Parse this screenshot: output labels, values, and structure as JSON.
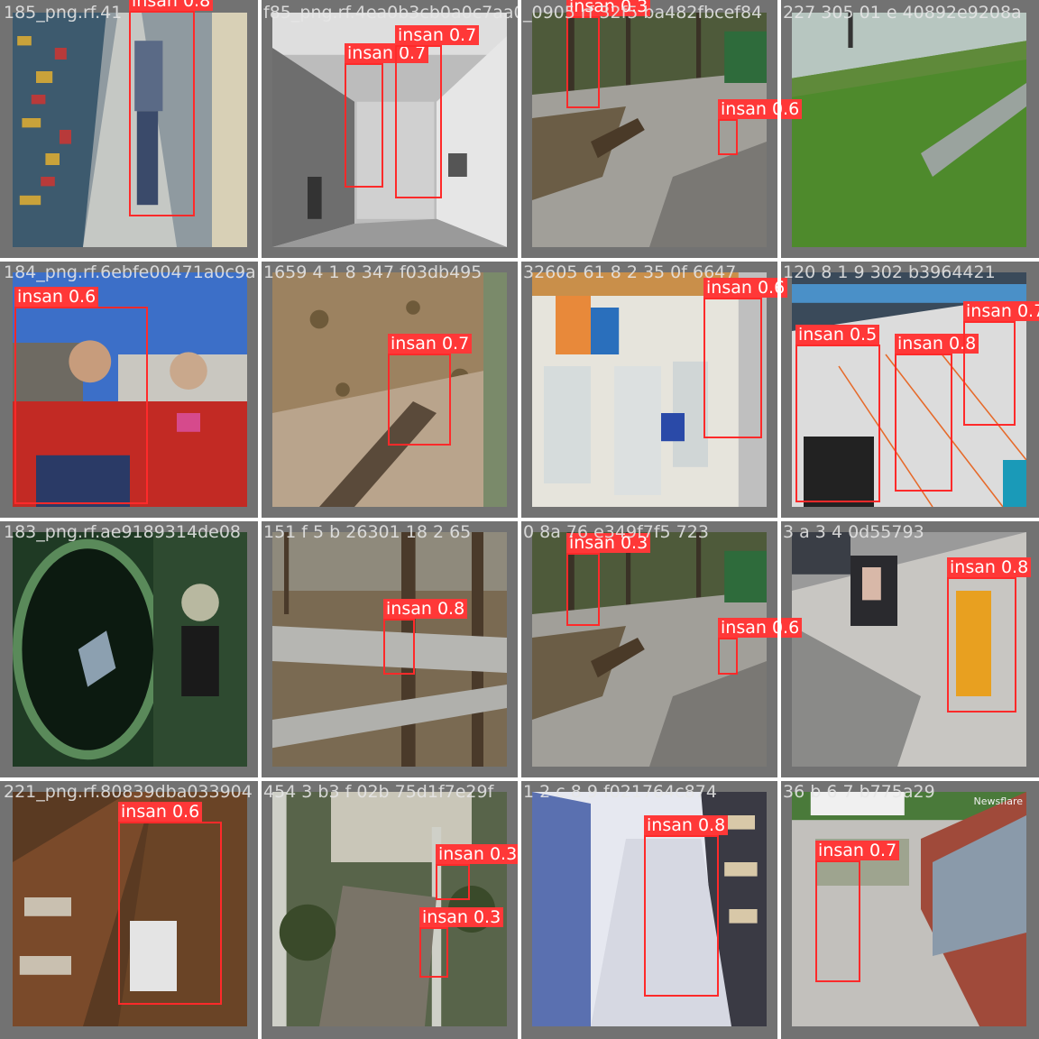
{
  "tiles": [
    {
      "filename": "185_png.rf.41",
      "scene": "aisle",
      "detections": [
        {
          "label": "insan 0.8"
        }
      ]
    },
    {
      "filename": "f85_png.rf.4ea0b3cb0a0c7aa0",
      "scene": "hall",
      "detections": [
        {
          "label": "insan 0.7"
        },
        {
          "label": "insan 0.7"
        }
      ]
    },
    {
      "filename": "_0905 rf 32f5 ba482fbcef84",
      "scene": "park",
      "detections": [
        {
          "label": "insan 0.3"
        },
        {
          "label": "insan 0.6"
        }
      ]
    },
    {
      "filename": "227 305 01 e 40892e9208a",
      "scene": "lawn",
      "detections": []
    },
    {
      "filename": "184_png.rf.6ebfe00471a0c9a",
      "scene": "couple",
      "detections": [
        {
          "label": "insan 0.6"
        }
      ]
    },
    {
      "filename": "1659 4 1 8 347 f03db495",
      "scene": "path",
      "detections": [
        {
          "label": "insan 0.7"
        }
      ]
    },
    {
      "filename": "32605 61 8 2 35 0f 6647",
      "scene": "store",
      "detections": [
        {
          "label": "insan 0.6"
        }
      ]
    },
    {
      "filename": "120 8 1 9 302 b3964421",
      "scene": "lobby",
      "detections": [
        {
          "label": "insan 0.5"
        },
        {
          "label": "insan 0.8"
        },
        {
          "label": "insan 0.7"
        }
      ]
    },
    {
      "filename": "183_png.rf.ae9189314de08",
      "scene": "green",
      "detections": []
    },
    {
      "filename": "151 f 5 b 26301 18 2 65",
      "scene": "forest",
      "detections": [
        {
          "label": "insan 0.8"
        }
      ]
    },
    {
      "filename": "0 8a 76 e349f7f5 723",
      "scene": "park",
      "detections": [
        {
          "label": "insan 0.3"
        },
        {
          "label": "insan 0.6"
        }
      ]
    },
    {
      "filename": "3 a 3 4 0d55793",
      "scene": "street",
      "detections": [
        {
          "label": "insan 0.8"
        }
      ]
    },
    {
      "filename": "221_png.rf.80839dba033904",
      "scene": "counter",
      "detections": [
        {
          "label": "insan 0.6"
        }
      ]
    },
    {
      "filename": "454 3 b3 f 02b 75d1f7e29f",
      "scene": "trees",
      "detections": [
        {
          "label": "insan 0.3"
        },
        {
          "label": "insan 0.3"
        }
      ]
    },
    {
      "filename": "1 2 c 8 9 f021764c874",
      "scene": "shop",
      "detections": [
        {
          "label": "insan 0.8"
        }
      ]
    },
    {
      "filename": "36 b 6 7 b775a29",
      "scene": "yard",
      "overlay": "Newsflare",
      "detections": [
        {
          "label": "insan 0.7"
        }
      ]
    }
  ],
  "colors": {
    "box": "#ff2a2a",
    "label_bg": "#ff3838",
    "tile_bg": "#727272"
  }
}
